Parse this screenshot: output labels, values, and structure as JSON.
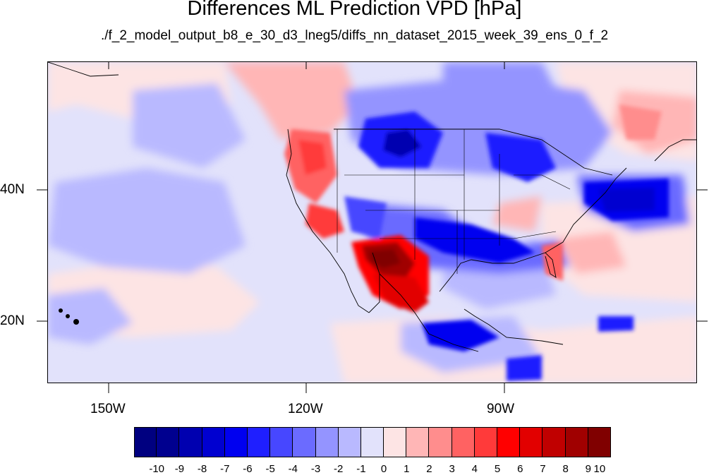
{
  "figure": {
    "title": "Differences ML Prediction VPD [hPa]",
    "subtitle": "./f_2_model_output_b8_e_30_d3_lneg5/diffs_nn_dataset_2015_week_39_ens_0_f_2"
  },
  "map": {
    "lat_labels": [
      {
        "text": "40N",
        "lat": 40
      },
      {
        "text": "20N",
        "lat": 20
      }
    ],
    "lon_labels": [
      {
        "text": "150W",
        "lon": -150
      },
      {
        "text": "120W",
        "lon": -120
      },
      {
        "text": "90W",
        "lon": -90
      }
    ],
    "lon_range": [
      -159,
      -61
    ],
    "lat_range": [
      10,
      59
    ],
    "colormap": "blue-white-red diverging",
    "regions_features": [
      "strong-positive-southwest-us-mexico",
      "negative-central-us",
      "negative-east-atlantic-coast",
      "positive-pacific-northwest"
    ]
  },
  "colorbar": {
    "labels": [
      "-10",
      "-9",
      "-8",
      "-7",
      "-6",
      "-5",
      "-4",
      "-3",
      "-2",
      "-1",
      "0",
      "1",
      "2",
      "3",
      "4",
      "5",
      "6",
      "7",
      "8",
      "9",
      "10"
    ],
    "colors": [
      "#000080",
      "#00008f",
      "#0000b0",
      "#0000d0",
      "#0000f0",
      "#1f1fff",
      "#4747ff",
      "#6b6bff",
      "#9494ff",
      "#b9b9ff",
      "#e2e2fb",
      "#fde4e4",
      "#ffb6b6",
      "#ff8d8d",
      "#ff6262",
      "#ff3a3a",
      "#ff0000",
      "#e20000",
      "#c00000",
      "#a00000",
      "#800000"
    ]
  }
}
